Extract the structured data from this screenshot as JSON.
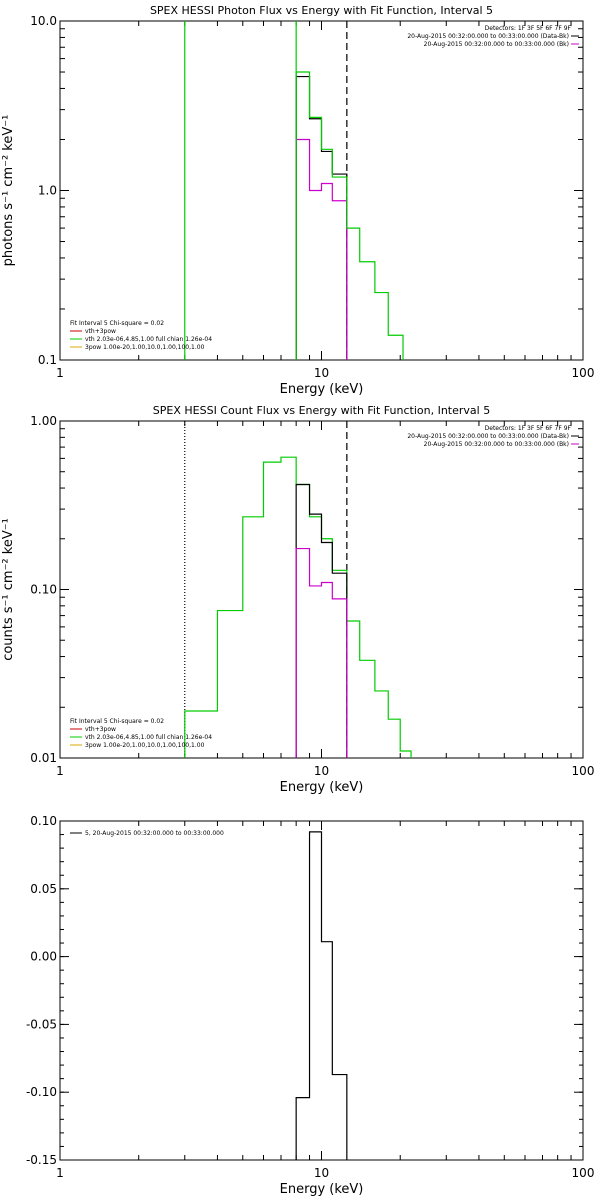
{
  "chart_data": [
    {
      "type": "line",
      "title": "SPEX HESSI Photon Flux vs Energy with Fit Function, Interval 5",
      "xlabel": "Energy (keV)",
      "ylabel": "photons s⁻¹ cm⁻² keV⁻¹",
      "xscale": "log",
      "yscale": "log",
      "xlim": [
        1,
        100
      ],
      "ylim": [
        0.1,
        10
      ],
      "xticks": [
        "1",
        "10",
        "100"
      ],
      "yticks": [
        "0.1",
        "1.0",
        "10.0"
      ],
      "grid": false,
      "vlines": [
        {
          "x": 3.0,
          "style": "solid",
          "color": "#00cc00"
        },
        {
          "x": 8.0,
          "style": "solid",
          "color": "#00cc00"
        },
        {
          "x": 12.5,
          "style": "dashed",
          "color": "#000000"
        }
      ],
      "legend_top_right": {
        "header": "Detectors: 1F 3F 5F 6F 7F 9F",
        "entries": [
          {
            "label": "20-Aug-2015 00:32:00.000 to 00:33:00.000 (Data-Bk)",
            "color": "#000000"
          },
          {
            "label": "20-Aug-2015 00:32:00.000 to 00:33:00.000 (Bk)",
            "color": "#cc00cc"
          }
        ]
      },
      "legend_bottom_left": {
        "header": "Fit Interval 5   Chi-square = 0.02",
        "entries": [
          {
            "label": "vth+3pow",
            "color": "#cc0000"
          },
          {
            "label": "vth 2.03e-06,4.85,1.00  full chian 1.26e-04",
            "color": "#00cc00"
          },
          {
            "label": "3pow 1.00e-20,1.00,10.0,1.00,100,1.00",
            "color": "#ddaa00"
          }
        ]
      },
      "series": [
        {
          "color": "#000000",
          "edges": [
            8,
            9,
            10,
            11,
            12.5
          ],
          "values": [
            4.7,
            2.65,
            1.7,
            1.25
          ]
        },
        {
          "color": "#cc00cc",
          "edges": [
            8,
            9,
            10,
            11,
            12.5
          ],
          "values": [
            2.0,
            1.0,
            1.1,
            0.87
          ]
        },
        {
          "color": "#00cc00",
          "edges": [
            8,
            9,
            10,
            11,
            12.5,
            14,
            16,
            18,
            20.5
          ],
          "values": [
            5.0,
            2.7,
            1.75,
            1.2,
            0.6,
            0.38,
            0.25,
            0.14
          ]
        }
      ]
    },
    {
      "type": "line",
      "title": "SPEX HESSI Count Flux vs Energy with Fit Function, Interval 5",
      "xlabel": "Energy (keV)",
      "ylabel": "counts s⁻¹ cm⁻² keV⁻¹",
      "xscale": "log",
      "yscale": "log",
      "xlim": [
        1,
        100
      ],
      "ylim": [
        0.01,
        1.0
      ],
      "xticks": [
        "1",
        "10",
        "100"
      ],
      "yticks": [
        "0.01",
        "0.10",
        "1.00"
      ],
      "grid": false,
      "vlines": [
        {
          "x": 3.0,
          "style": "dotted",
          "color": "#000000"
        },
        {
          "x": 12.5,
          "style": "dashed",
          "color": "#000000"
        }
      ],
      "legend_top_right": {
        "header": "Detectors: 1F 3F 5F 6F 7F 9F",
        "entries": [
          {
            "label": "20-Aug-2015 00:32:00.000 to 00:33:00.000 (Data-Bk)",
            "color": "#000000"
          },
          {
            "label": "20-Aug-2015 00:32:00.000 to 00:33:00.000 (Bk)",
            "color": "#cc00cc"
          }
        ]
      },
      "legend_bottom_left": {
        "header": "Fit Interval 5   Chi-square = 0.02",
        "entries": [
          {
            "label": "vth+3pow",
            "color": "#cc0000"
          },
          {
            "label": "vth 2.03e-06,4.85,1.00  full chian 1.26e-04",
            "color": "#00cc00"
          },
          {
            "label": "3pow 1.00e-20,1.00,10.0,1.00,100,1.00",
            "color": "#ddaa00"
          }
        ]
      },
      "series": [
        {
          "color": "#00cc00",
          "edges": [
            3,
            4,
            5,
            6,
            7,
            8,
            9,
            10,
            11,
            12.5,
            14,
            16,
            18,
            20,
            22
          ],
          "values": [
            0.019,
            0.075,
            0.27,
            0.57,
            0.61,
            0.42,
            0.27,
            0.2,
            0.13,
            0.065,
            0.038,
            0.025,
            0.017,
            0.011
          ]
        },
        {
          "color": "#000000",
          "edges": [
            8,
            9,
            10,
            11,
            12.5
          ],
          "values": [
            0.42,
            0.28,
            0.19,
            0.125
          ]
        },
        {
          "color": "#cc00cc",
          "edges": [
            8,
            9,
            10,
            11,
            12.5
          ],
          "values": [
            0.175,
            0.105,
            0.11,
            0.088
          ]
        }
      ]
    },
    {
      "type": "line",
      "title": "",
      "xlabel": "Energy (keV)",
      "ylabel": "",
      "xscale": "log",
      "yscale": "linear",
      "xlim": [
        1,
        100
      ],
      "ylim": [
        -0.15,
        0.1
      ],
      "xticks": [
        "1",
        "10",
        "100"
      ],
      "yticks": [
        "-0.15",
        "-0.10",
        "-0.05",
        "0.00",
        "0.05",
        "0.10"
      ],
      "grid": false,
      "legend_top_left": {
        "entries": [
          {
            "label": "5, 20-Aug-2015 00:32:00.000 to 00:33:00.000",
            "color": "#000000"
          }
        ]
      },
      "series": [
        {
          "color": "#000000",
          "edges": [
            8,
            9,
            10,
            11,
            12.5
          ],
          "values": [
            -0.104,
            0.092,
            0.011,
            -0.087
          ]
        }
      ]
    }
  ]
}
